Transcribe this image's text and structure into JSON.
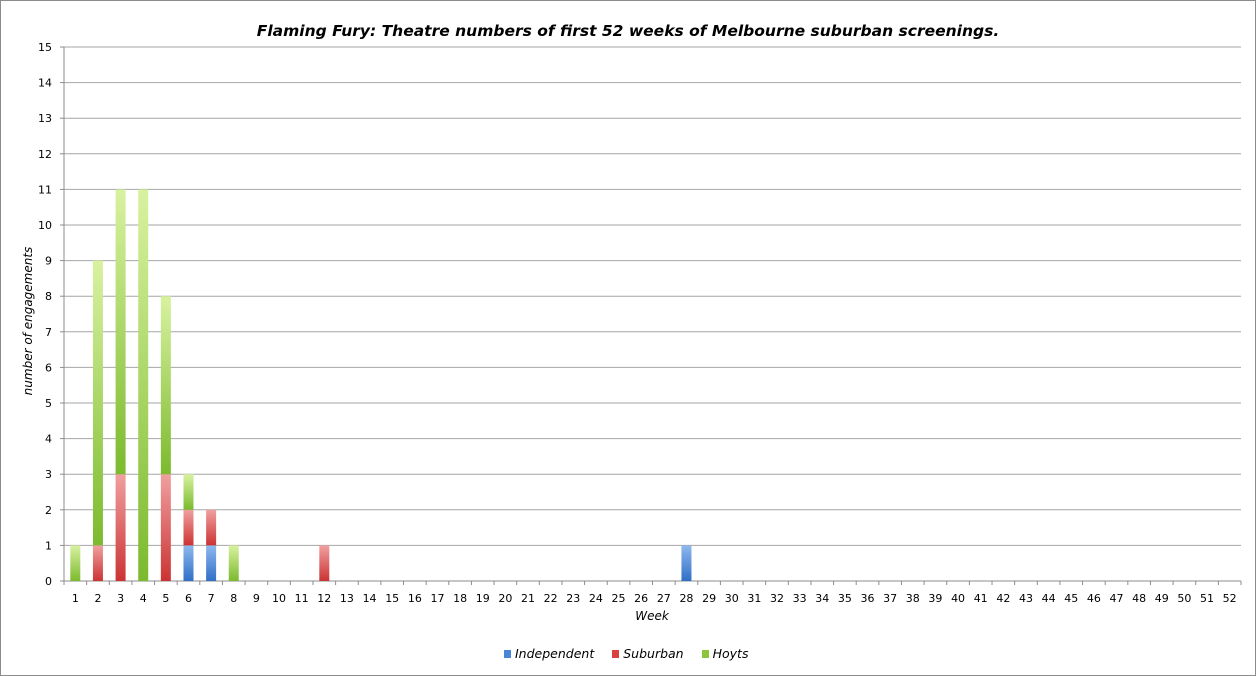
{
  "chart_data": {
    "type": "bar",
    "stacked": true,
    "title": "Flaming Fury: Theatre numbers of first 52 weeks of Melbourne suburban screenings.",
    "xlabel": "Week",
    "ylabel": "number of engagements",
    "ylim": [
      0,
      15
    ],
    "yticks": [
      0,
      1,
      2,
      3,
      4,
      5,
      6,
      7,
      8,
      9,
      10,
      11,
      12,
      13,
      14,
      15
    ],
    "grid": true,
    "legend_position": "bottom",
    "categories": [
      "1",
      "2",
      "3",
      "4",
      "5",
      "6",
      "7",
      "8",
      "9",
      "10",
      "11",
      "12",
      "13",
      "14",
      "15",
      "16",
      "17",
      "18",
      "19",
      "20",
      "21",
      "22",
      "23",
      "24",
      "25",
      "26",
      "27",
      "28",
      "29",
      "30",
      "31",
      "32",
      "33",
      "34",
      "35",
      "36",
      "37",
      "38",
      "39",
      "40",
      "41",
      "42",
      "43",
      "44",
      "45",
      "46",
      "47",
      "48",
      "49",
      "50",
      "51",
      "52"
    ],
    "series": [
      {
        "name": "Independent",
        "color": "#4a86d8",
        "values": [
          0,
          0,
          0,
          0,
          0,
          1,
          1,
          0,
          0,
          0,
          0,
          0,
          0,
          0,
          0,
          0,
          0,
          0,
          0,
          0,
          0,
          0,
          0,
          0,
          0,
          0,
          0,
          1,
          0,
          0,
          0,
          0,
          0,
          0,
          0,
          0,
          0,
          0,
          0,
          0,
          0,
          0,
          0,
          0,
          0,
          0,
          0,
          0,
          0,
          0,
          0,
          0
        ]
      },
      {
        "name": "Suburban",
        "color": "#d94040",
        "values": [
          0,
          1,
          3,
          0,
          3,
          1,
          1,
          0,
          0,
          0,
          0,
          1,
          0,
          0,
          0,
          0,
          0,
          0,
          0,
          0,
          0,
          0,
          0,
          0,
          0,
          0,
          0,
          0,
          0,
          0,
          0,
          0,
          0,
          0,
          0,
          0,
          0,
          0,
          0,
          0,
          0,
          0,
          0,
          0,
          0,
          0,
          0,
          0,
          0,
          0,
          0,
          0
        ]
      },
      {
        "name": "Hoyts",
        "color": "#8cc43c",
        "values": [
          1,
          8,
          8,
          11,
          5,
          1,
          0,
          1,
          0,
          0,
          0,
          0,
          0,
          0,
          0,
          0,
          0,
          0,
          0,
          0,
          0,
          0,
          0,
          0,
          0,
          0,
          0,
          0,
          0,
          0,
          0,
          0,
          0,
          0,
          0,
          0,
          0,
          0,
          0,
          0,
          0,
          0,
          0,
          0,
          0,
          0,
          0,
          0,
          0,
          0,
          0,
          0
        ]
      }
    ]
  }
}
